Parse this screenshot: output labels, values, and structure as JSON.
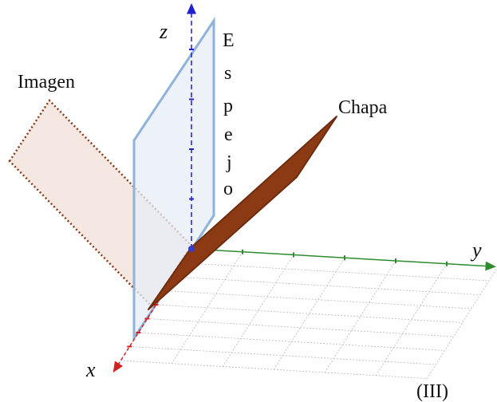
{
  "labels": {
    "axis_x": "x",
    "axis_y": "y",
    "axis_z": "z",
    "image": "Imagen",
    "sheet": "Chapa",
    "mirror_letters": [
      "E",
      "s",
      "p",
      "e",
      "j",
      "o"
    ],
    "panel": "(III)"
  },
  "colors": {
    "x_axis": "#d22222",
    "y_axis": "#2e8b2e",
    "z_axis": "#2020d0",
    "mirror_edge": "#8fb3d9",
    "mirror_fill": "#e6eef6",
    "sheet_fill": "#8b3a14",
    "sheet_edge": "#6e2c0e",
    "image_edge": "#8b3a14",
    "image_fill": "#f3e3dc",
    "grid": "#b5b5b5"
  }
}
